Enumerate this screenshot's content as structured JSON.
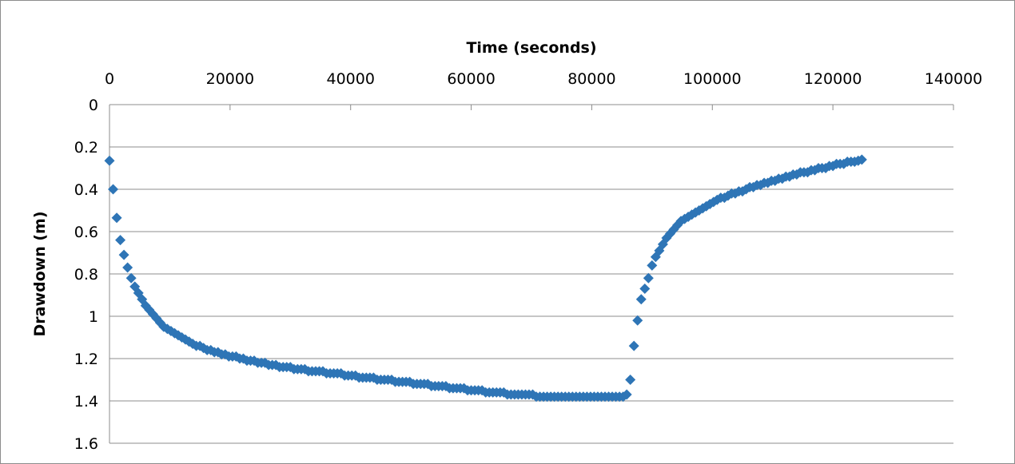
{
  "chart_data": {
    "type": "scatter",
    "xlabel": "Time (seconds)",
    "ylabel": "Drawdown (m)",
    "x_axis_position": "top",
    "y_axis_inverted": true,
    "xlim": [
      0,
      140000
    ],
    "ylim": [
      0,
      1.6
    ],
    "x_ticks": [
      0,
      20000,
      40000,
      60000,
      80000,
      100000,
      120000,
      140000
    ],
    "y_ticks": [
      0,
      0.2,
      0.4,
      0.6,
      0.8,
      1,
      1.2,
      1.4,
      1.6
    ],
    "x_tick_labels": [
      "0",
      "20000",
      "40000",
      "60000",
      "80000",
      "100000",
      "120000",
      "140000"
    ],
    "y_tick_labels": [
      "0",
      "0.2",
      "0.4",
      "0.6",
      "0.8",
      "1",
      "1.2",
      "1.4",
      "1.6"
    ],
    "grid": "horizontal",
    "legend": "none",
    "marker": "diamond",
    "marker_color": "#2e75b6",
    "series": [
      {
        "x": [
          0,
          600,
          1200,
          1800,
          2400,
          3000,
          3600,
          4200,
          4800,
          5400,
          6000,
          6600,
          7200,
          7800,
          8400,
          9000,
          9600,
          10200,
          10800,
          11400,
          12000,
          12600,
          13200,
          13800,
          14400,
          15000,
          15600,
          16200,
          16800,
          17400,
          18000,
          18600,
          19200,
          19800,
          20400,
          21000,
          21600,
          22200,
          22800,
          23400,
          24000,
          24600,
          25200,
          25800,
          26400,
          27000,
          27600,
          28200,
          28800,
          29400,
          30000,
          30600,
          31200,
          31800,
          32400,
          33000,
          33600,
          34200,
          34800,
          35400,
          36000,
          36600,
          37200,
          37800,
          38400,
          39000,
          39600,
          40200,
          40800,
          41400,
          42000,
          42600,
          43200,
          43800,
          44400,
          45000,
          45600,
          46200,
          46800,
          47400,
          48000,
          48600,
          49200,
          49800,
          50400,
          51000,
          51600,
          52200,
          52800,
          53400,
          54000,
          54600,
          55200,
          55800,
          56400,
          57000,
          57600,
          58200,
          58800,
          59400,
          60000,
          60600,
          61200,
          61800,
          62400,
          63000,
          63600,
          64200,
          64800,
          65400,
          66000,
          66600,
          67200,
          67800,
          68400,
          69000,
          69600,
          70200,
          70800,
          71400,
          72000,
          72600,
          73200,
          73800,
          74400,
          75000,
          75600,
          76200,
          76800,
          77400,
          78000,
          78600,
          79200,
          79800,
          80400,
          81000,
          81600,
          82200,
          82800,
          83400,
          84000,
          84600,
          85200,
          85800,
          86400,
          87000,
          87600,
          88200,
          88800,
          89400,
          90000,
          90600,
          91200,
          91800,
          92400,
          93000,
          93600,
          94200,
          94800,
          95400,
          96000,
          96600,
          97200,
          97800,
          98400,
          99000,
          99600,
          100200,
          100800,
          101400,
          102000,
          102600,
          103200,
          103800,
          104400,
          105000,
          105600,
          106200,
          106800,
          107400,
          108000,
          108600,
          109200,
          109800,
          110400,
          111000,
          111600,
          112200,
          112800,
          113400,
          114000,
          114600,
          115200,
          115800,
          116400,
          117000,
          117600,
          118200,
          118800,
          119400,
          120000,
          120600,
          121200,
          121800,
          122400,
          123000,
          123600,
          124200,
          124800
        ],
        "y": [
          0.265,
          0.4,
          0.535,
          0.64,
          0.71,
          0.77,
          0.82,
          0.86,
          0.89,
          0.92,
          0.95,
          0.97,
          0.99,
          1.01,
          1.03,
          1.05,
          1.06,
          1.07,
          1.08,
          1.09,
          1.1,
          1.11,
          1.12,
          1.13,
          1.14,
          1.14,
          1.15,
          1.16,
          1.16,
          1.17,
          1.17,
          1.18,
          1.18,
          1.19,
          1.19,
          1.19,
          1.2,
          1.2,
          1.21,
          1.21,
          1.21,
          1.22,
          1.22,
          1.22,
          1.23,
          1.23,
          1.23,
          1.24,
          1.24,
          1.24,
          1.24,
          1.25,
          1.25,
          1.25,
          1.25,
          1.26,
          1.26,
          1.26,
          1.26,
          1.26,
          1.27,
          1.27,
          1.27,
          1.27,
          1.27,
          1.28,
          1.28,
          1.28,
          1.28,
          1.29,
          1.29,
          1.29,
          1.29,
          1.29,
          1.3,
          1.3,
          1.3,
          1.3,
          1.3,
          1.31,
          1.31,
          1.31,
          1.31,
          1.31,
          1.32,
          1.32,
          1.32,
          1.32,
          1.32,
          1.33,
          1.33,
          1.33,
          1.33,
          1.33,
          1.34,
          1.34,
          1.34,
          1.34,
          1.34,
          1.35,
          1.35,
          1.35,
          1.35,
          1.35,
          1.36,
          1.36,
          1.36,
          1.36,
          1.36,
          1.36,
          1.37,
          1.37,
          1.37,
          1.37,
          1.37,
          1.37,
          1.37,
          1.37,
          1.38,
          1.38,
          1.38,
          1.38,
          1.38,
          1.38,
          1.38,
          1.38,
          1.38,
          1.38,
          1.38,
          1.38,
          1.38,
          1.38,
          1.38,
          1.38,
          1.38,
          1.38,
          1.38,
          1.38,
          1.38,
          1.38,
          1.38,
          1.38,
          1.38,
          1.37,
          1.3,
          1.14,
          1.02,
          0.92,
          0.87,
          0.82,
          0.76,
          0.72,
          0.69,
          0.66,
          0.63,
          0.61,
          0.59,
          0.57,
          0.55,
          0.54,
          0.53,
          0.52,
          0.51,
          0.5,
          0.49,
          0.48,
          0.47,
          0.46,
          0.45,
          0.44,
          0.44,
          0.43,
          0.42,
          0.42,
          0.41,
          0.41,
          0.4,
          0.39,
          0.39,
          0.38,
          0.38,
          0.37,
          0.37,
          0.36,
          0.36,
          0.35,
          0.35,
          0.34,
          0.34,
          0.33,
          0.33,
          0.32,
          0.32,
          0.32,
          0.31,
          0.31,
          0.3,
          0.3,
          0.3,
          0.29,
          0.29,
          0.28,
          0.28,
          0.28,
          0.27,
          0.27,
          0.27,
          0.265,
          0.26
        ]
      }
    ]
  }
}
